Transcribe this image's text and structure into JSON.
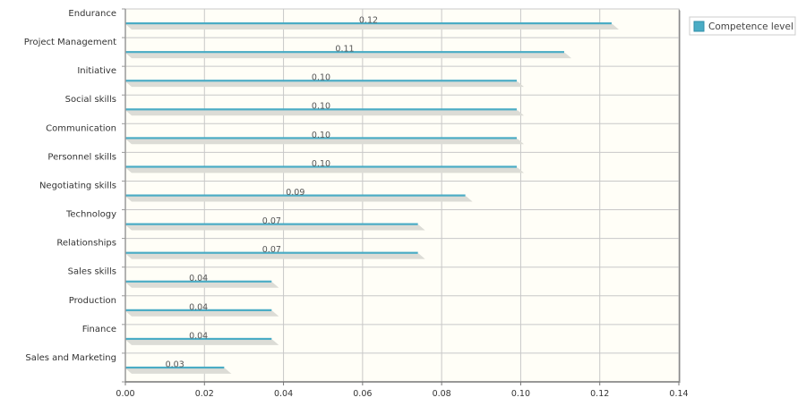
{
  "chart_data": {
    "type": "bar",
    "orientation": "horizontal",
    "categories": [
      "Endurance",
      "Project Management",
      "Initiative",
      "Social skills",
      "Communication",
      "Personnel skills",
      "Negotiating skills",
      "Technology",
      "Relationships",
      "Sales skills",
      "Production",
      "Finance",
      "Sales and Marketing"
    ],
    "series": [
      {
        "name": "Competence level",
        "values": [
          0.123,
          0.111,
          0.099,
          0.099,
          0.099,
          0.099,
          0.086,
          0.074,
          0.074,
          0.037,
          0.037,
          0.037,
          0.025
        ],
        "data_labels": [
          "0.12",
          "0.11",
          "0.10",
          "0.10",
          "0.10",
          "0.10",
          "0.09",
          "0.07",
          "0.07",
          "0.04",
          "0.04",
          "0.04",
          "0.03"
        ],
        "color": "#4aacc5"
      }
    ],
    "x_ticks": [
      "0.00",
      "0.02",
      "0.04",
      "0.06",
      "0.08",
      "0.10",
      "0.12",
      "0.14"
    ],
    "xlim": [
      0,
      0.14
    ],
    "grid": true,
    "legend_position": "top-right",
    "plot_background": "#fffef7",
    "shadow_color": "#dcdcd6",
    "axis_color": "#999999"
  }
}
